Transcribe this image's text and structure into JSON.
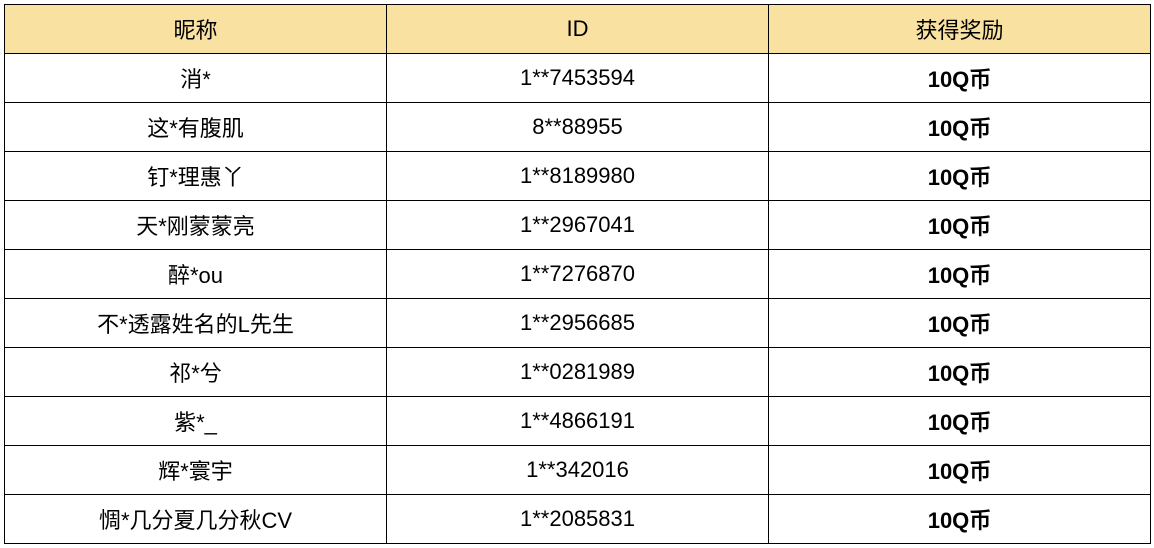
{
  "table": {
    "header_bg": "#f9e1a1",
    "border_color": "#000000",
    "columns": [
      "昵称",
      "ID",
      "获得奖励"
    ],
    "rows": [
      {
        "nick": "消*",
        "id": "1**7453594",
        "reward": "10Q币"
      },
      {
        "nick": "这*有腹肌",
        "id": "8**88955",
        "reward": "10Q币"
      },
      {
        "nick": "钉*理惠丫",
        "id": "1**8189980",
        "reward": "10Q币"
      },
      {
        "nick": "天*刚蒙蒙亮",
        "id": "1**2967041",
        "reward": "10Q币"
      },
      {
        "nick": "醉*ou",
        "id": "1**7276870",
        "reward": "10Q币"
      },
      {
        "nick": "不*透露姓名的L先生",
        "id": "1**2956685",
        "reward": "10Q币"
      },
      {
        "nick": "祁*兮",
        "id": "1**0281989",
        "reward": "10Q币"
      },
      {
        "nick": "紫*_",
        "id": "1**4866191",
        "reward": "10Q币"
      },
      {
        "nick": "辉*寰宇",
        "id": "1**342016",
        "reward": "10Q币"
      },
      {
        "nick": "惆*几分夏几分秋CV",
        "id": "1**2085831",
        "reward": "10Q币"
      }
    ]
  }
}
